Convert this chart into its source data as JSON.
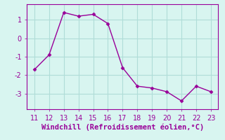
{
  "x": [
    11,
    12,
    13,
    14,
    15,
    16,
    17,
    18,
    19,
    20,
    21,
    22,
    23
  ],
  "y": [
    -1.7,
    -0.9,
    1.4,
    1.2,
    1.3,
    0.8,
    -1.6,
    -2.6,
    -2.7,
    -2.9,
    -3.4,
    -2.6,
    -2.9
  ],
  "line_color": "#990099",
  "marker": "D",
  "marker_size": 2.5,
  "background_color": "#d8f5f0",
  "grid_color": "#b0ddd8",
  "xlabel": "Windchill (Refroidissement éolien,°C)",
  "xlabel_color": "#990099",
  "xlabel_fontsize": 7.5,
  "tick_color": "#990099",
  "tick_fontsize": 7,
  "xlim": [
    10.5,
    23.5
  ],
  "ylim": [
    -3.85,
    1.85
  ],
  "yticks": [
    -3,
    -2,
    -1,
    0,
    1
  ],
  "xticks": [
    11,
    12,
    13,
    14,
    15,
    16,
    17,
    18,
    19,
    20,
    21,
    22,
    23
  ],
  "line_width": 1.0,
  "spine_color": "#990099"
}
